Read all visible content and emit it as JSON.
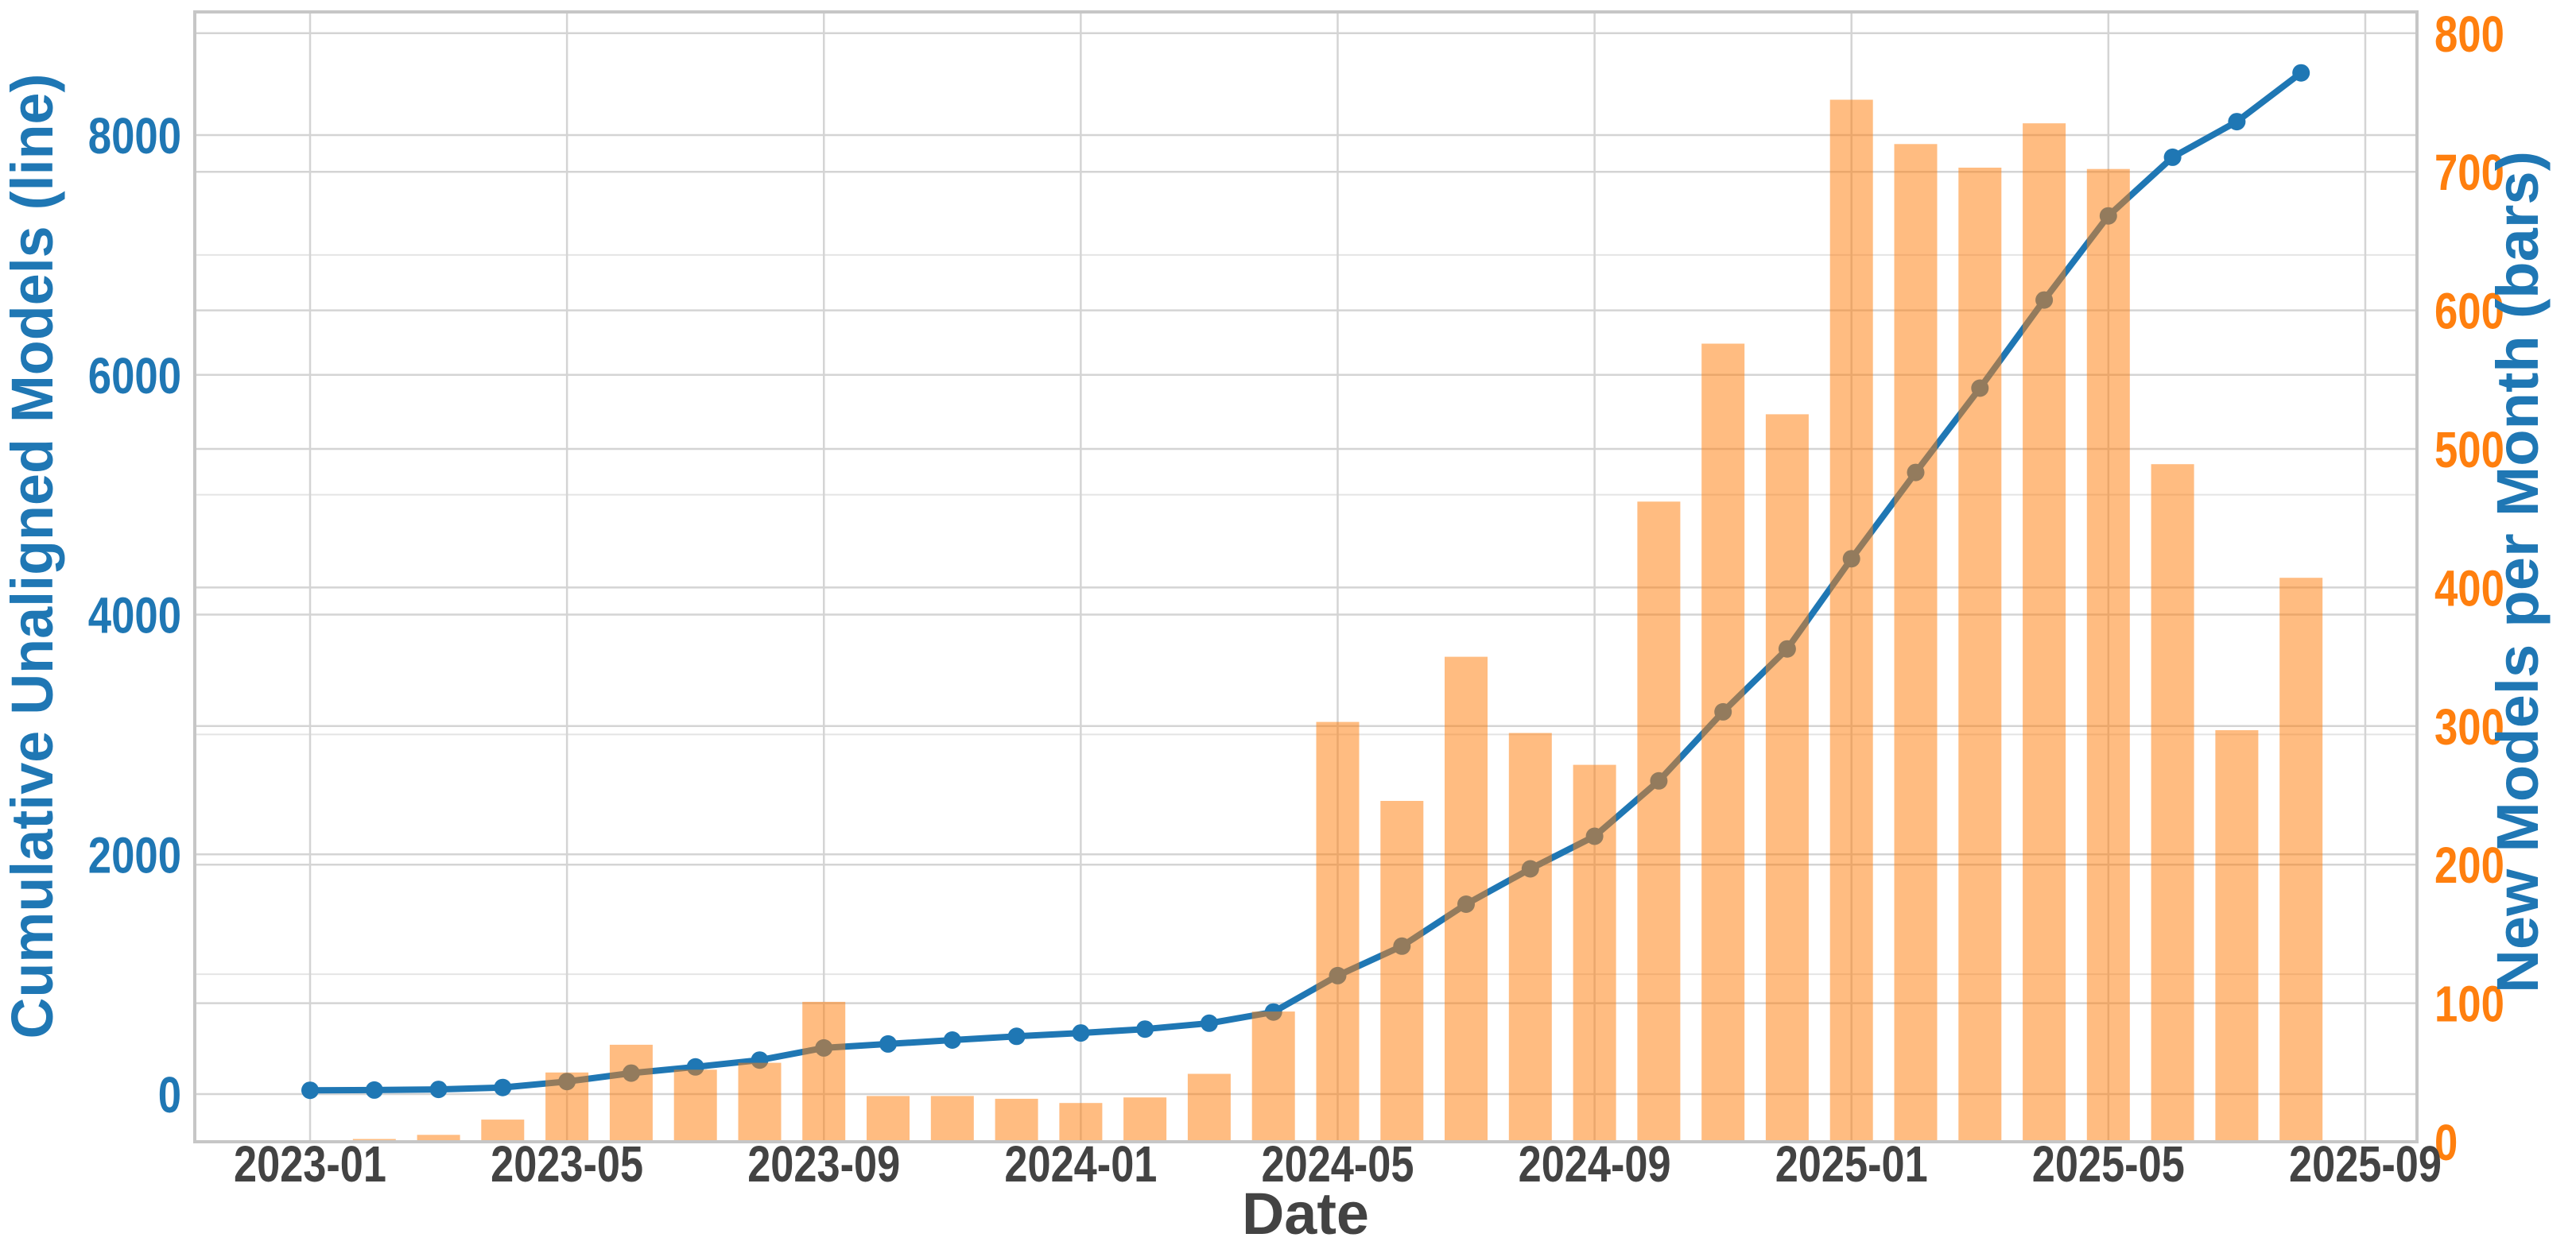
{
  "chart_data": {
    "type": "bar+line",
    "xlabel": "Date",
    "axis_left": {
      "label": "Cumulative Unaligned Models (line)",
      "color": "#1f77b4",
      "ticks": [
        0,
        2000,
        4000,
        6000,
        8000
      ],
      "minor_grid_step": 1000,
      "ylim": [
        -400,
        9000
      ]
    },
    "axis_right": {
      "label": "New Models per Month (bars)",
      "color": "#ff7f0e",
      "ticks": [
        0,
        100,
        200,
        300,
        400,
        500,
        600,
        700,
        800
      ],
      "ylim": [
        0,
        815
      ]
    },
    "x_tick_labels": [
      "2023-01",
      "2023-05",
      "2023-09",
      "2024-01",
      "2024-05",
      "2024-09",
      "2025-01",
      "2025-05",
      "2025-09"
    ],
    "categories": [
      "2023-01",
      "2023-02",
      "2023-03",
      "2023-04",
      "2023-05",
      "2023-06",
      "2023-07",
      "2023-08",
      "2023-09",
      "2023-10",
      "2023-11",
      "2023-12",
      "2024-01",
      "2024-02",
      "2024-03",
      "2024-04",
      "2024-05",
      "2024-06",
      "2024-07",
      "2024-08",
      "2024-09",
      "2024-10",
      "2024-11",
      "2024-12",
      "2025-01",
      "2025-02",
      "2025-03",
      "2025-04",
      "2025-05",
      "2025-06",
      "2025-07",
      "2025-08"
    ],
    "series": [
      {
        "name": "New Models per Month",
        "type": "bar",
        "axis": "right",
        "color": "#ff7f0e",
        "opacity": 0.52,
        "values": [
          0,
          2,
          5,
          16,
          50,
          70,
          52,
          57,
          101,
          33,
          33,
          31,
          28,
          32,
          49,
          94,
          303,
          246,
          350,
          295,
          272,
          462,
          576,
          525,
          752,
          720,
          703,
          735,
          702,
          489,
          297,
          407
        ]
      },
      {
        "name": "Cumulative Unaligned Models",
        "type": "line",
        "axis": "left",
        "color": "#1f77b4",
        "values": [
          32,
          34,
          39,
          55,
          105,
          175,
          227,
          284,
          385,
          418,
          451,
          482,
          510,
          542,
          591,
          685,
          988,
          1234,
          1584,
          1879,
          2151,
          2613,
          3189,
          3714,
          4466,
          5186,
          5889,
          6624,
          7326,
          7815,
          8112,
          8519
        ]
      }
    ],
    "grid": "both-axes-horizontal-plus-vertical-at-ticks",
    "legend": "none",
    "colors": {
      "grid_major": "#d4d4d4",
      "grid_minor": "#e4e4e4",
      "plot_border": "#c6c6c6",
      "x_tick_text": "#434343",
      "background": "#ffffff"
    }
  }
}
